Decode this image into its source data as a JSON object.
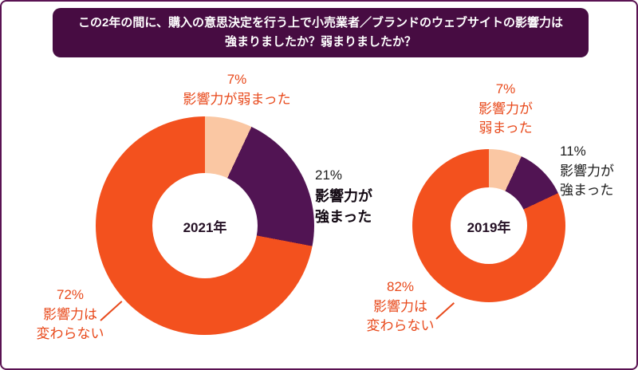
{
  "title": {
    "line1": "この2年の間に、購入の意思決定を行う上で小売業者／ブランドのウェブサイトの影響力は",
    "line2": "強まりましたか？弱まりましたか？"
  },
  "colors": {
    "segment_orange": "#F3511E",
    "segment_peach": "#FAC7A3",
    "segment_purple": "#511453",
    "title_bg": "#470C42",
    "frame_border": "#5A1252",
    "label_orange": "#E8491B",
    "label_dark": "#1C1C1C"
  },
  "chart_data": [
    {
      "type": "pie",
      "donut": true,
      "title": "2021年",
      "labels": [
        "影響力が弱まった",
        "影響力が強まった",
        "影響力は変わらない"
      ],
      "values": [
        7,
        21,
        72
      ],
      "colors": [
        "#FAC7A3",
        "#511453",
        "#F3511E"
      ],
      "start_angle_deg": 0,
      "direction": "clockwise",
      "legend": "none"
    },
    {
      "type": "pie",
      "donut": true,
      "title": "2019年",
      "labels": [
        "影響力が弱まった",
        "影響力が強まった",
        "影響力は変わらない"
      ],
      "values": [
        7,
        11,
        82
      ],
      "colors": [
        "#FAC7A3",
        "#511453",
        "#F3511E"
      ],
      "start_angle_deg": 0,
      "direction": "clockwise",
      "legend": "none"
    }
  ],
  "annotations": {
    "c2021": {
      "weaker_pct": "7%",
      "weaker_line": "影響力が弱まった",
      "stronger_pct": "21%",
      "stronger_line1": "影響力が",
      "stronger_line2": "強まった",
      "same_pct": "72%",
      "same_line1": "影響力は",
      "same_line2": "変わらない"
    },
    "c2019": {
      "weaker_pct": "7%",
      "weaker_line1": "影響力が",
      "weaker_line2": "弱まった",
      "stronger_pct": "11%",
      "stronger_line1": "影響力が",
      "stronger_line2": "強まった",
      "same_pct": "82%",
      "same_line1": "影響力は",
      "same_line2": "変わらない"
    }
  }
}
